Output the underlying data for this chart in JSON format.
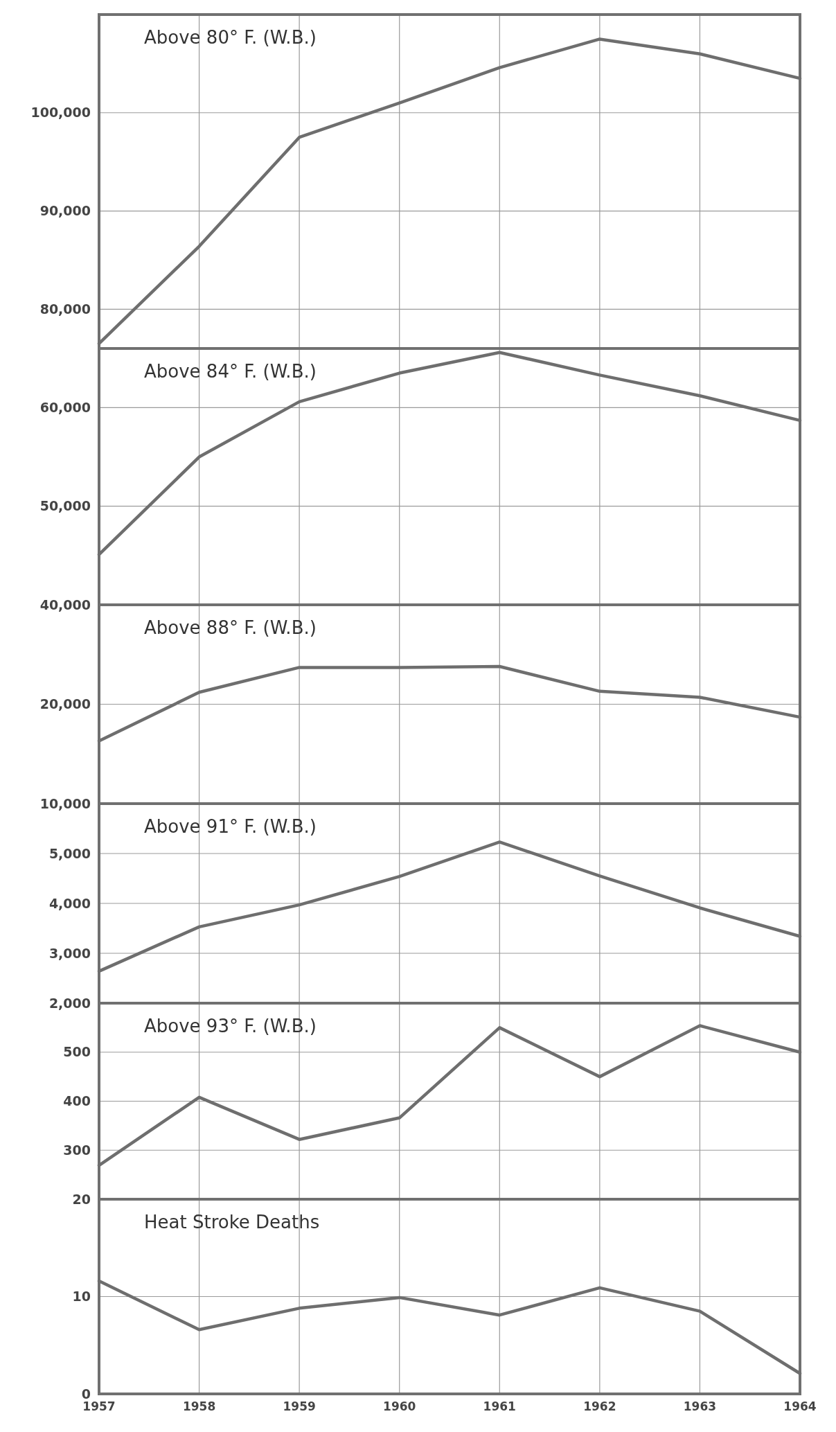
{
  "chart_data": [
    {
      "type": "line",
      "title": "Above 80° F. (W.B.)",
      "categories": [
        "1957",
        "1958",
        "1959",
        "1960",
        "1961",
        "1962",
        "1963",
        "1964"
      ],
      "values": [
        76500,
        86400,
        97500,
        101000,
        104600,
        107500,
        106000,
        103500
      ],
      "color": "#6e6e6e",
      "ylim": [
        76000,
        110000
      ],
      "yticks": [
        {
          "value": 80000,
          "label": "80,000"
        },
        {
          "value": 90000,
          "label": "90,000"
        },
        {
          "value": 100000,
          "label": "100,000"
        }
      ],
      "grid": true,
      "tick_labels": "y"
    },
    {
      "type": "line",
      "title": "Above 84° F. (W.B.)",
      "categories": [
        "1957",
        "1958",
        "1959",
        "1960",
        "1961",
        "1962",
        "1963",
        "1964"
      ],
      "values": [
        45100,
        55000,
        60600,
        63500,
        65600,
        63300,
        61200,
        58700
      ],
      "color": "#6e6e6e",
      "ylim": [
        40000,
        66000
      ],
      "yticks": [
        {
          "value": 40000,
          "label": "40,000"
        },
        {
          "value": 50000,
          "label": "50,000"
        },
        {
          "value": 60000,
          "label": "60,000"
        }
      ],
      "grid": true,
      "tick_labels": "y"
    },
    {
      "type": "line",
      "title": "Above 88° F. (W.B.)",
      "categories": [
        "1957",
        "1958",
        "1959",
        "1960",
        "1961",
        "1962",
        "1963",
        "1964"
      ],
      "values": [
        16300,
        21200,
        23700,
        23700,
        23800,
        21300,
        20700,
        18700
      ],
      "color": "#6e6e6e",
      "ylim": [
        10000,
        30000
      ],
      "yticks": [
        {
          "value": 10000,
          "label": "10,000"
        },
        {
          "value": 20000,
          "label": "20,000"
        }
      ],
      "grid": true,
      "tick_labels": "y"
    },
    {
      "type": "line",
      "title": "Above 91° F. (W.B.)",
      "categories": [
        "1957",
        "1958",
        "1959",
        "1960",
        "1961",
        "1962",
        "1963",
        "1964"
      ],
      "values": [
        2640,
        3530,
        3970,
        4540,
        5230,
        4550,
        3910,
        3340
      ],
      "color": "#6e6e6e",
      "ylim": [
        2000,
        6000
      ],
      "yticks": [
        {
          "value": 2000,
          "label": "2,000"
        },
        {
          "value": 3000,
          "label": "3,000"
        },
        {
          "value": 4000,
          "label": "4,000"
        },
        {
          "value": 5000,
          "label": "5,000"
        }
      ],
      "grid": true,
      "tick_labels": "y"
    },
    {
      "type": "line",
      "title": "Above 93° F. (W.B.)",
      "categories": [
        "1957",
        "1958",
        "1959",
        "1960",
        "1961",
        "1962",
        "1963",
        "1964"
      ],
      "values": [
        269,
        408,
        322,
        366,
        550,
        450,
        554,
        500
      ],
      "color": "#6e6e6e",
      "ylim": [
        200,
        600
      ],
      "yticks": [
        300,
        400,
        500
      ],
      "grid": true,
      "tick_labels": "y"
    },
    {
      "type": "line",
      "title": "Heat Stroke Deaths",
      "categories": [
        "1957",
        "1958",
        "1959",
        "1960",
        "1961",
        "1962",
        "1963",
        "1964"
      ],
      "values": [
        11.6,
        6.6,
        8.8,
        9.9,
        8.1,
        10.9,
        8.5,
        2.1
      ],
      "color": "#6e6e6e",
      "ylim": [
        0,
        20
      ],
      "yticks": [
        0,
        10,
        20
      ],
      "grid": true
    }
  ]
}
